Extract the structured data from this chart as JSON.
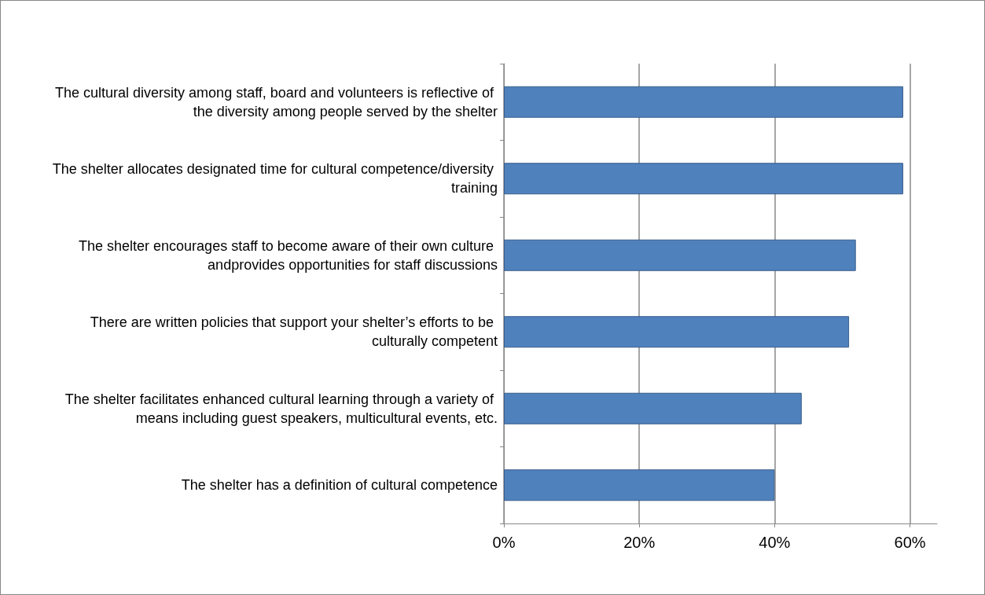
{
  "chart_data": {
    "type": "bar",
    "orientation": "horizontal",
    "categories": [
      "The cultural diversity among staff, board and volunteers is reflective of the diversity among people served by the shelter",
      "The shelter allocates designated time for cultural competence/diversity training",
      "The shelter encourages staff to become aware of their own culture andprovides opportunities for staff discussions",
      "There are written policies that support your shelter’s efforts to be culturally competent",
      "The shelter facilitates enhanced cultural learning through a variety of means including guest speakers, multicultural events, etc.",
      "The shelter has a definition of cultural competence"
    ],
    "values": [
      59,
      59,
      52,
      51,
      44,
      40
    ],
    "color": "#4f81bd",
    "xlim": [
      0,
      64
    ],
    "xticks": [
      {
        "value": 0,
        "label": "0%"
      },
      {
        "value": 20,
        "label": "20%"
      },
      {
        "value": 40,
        "label": "40%"
      },
      {
        "value": 60,
        "label": "60%"
      }
    ],
    "grid": "x"
  }
}
